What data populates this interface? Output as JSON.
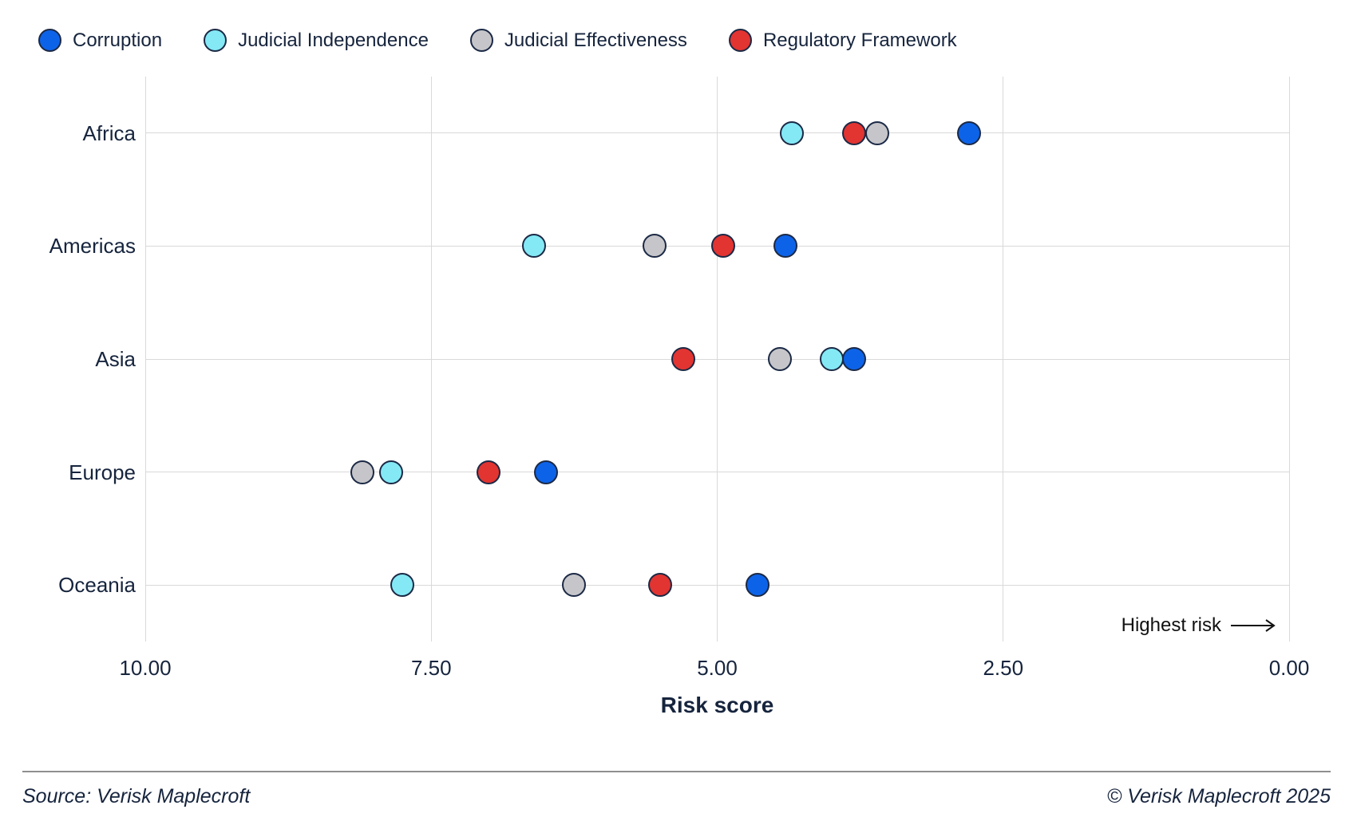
{
  "legend": {
    "items": [
      {
        "label": "Corruption",
        "color": "#0d63e8"
      },
      {
        "label": "Judicial Independence",
        "color": "#84e9f5"
      },
      {
        "label": "Judicial Effectiveness",
        "color": "#c6c6ca"
      },
      {
        "label": "Regulatory Framework",
        "color": "#e23431"
      }
    ]
  },
  "chart_data": {
    "type": "scatter",
    "variant": "horizontal-dot-plot",
    "categories": [
      "Africa",
      "Americas",
      "Asia",
      "Europe",
      "Oceania"
    ],
    "series": [
      {
        "name": "Corruption",
        "color": "#0d63e8",
        "values": [
          2.8,
          4.4,
          3.8,
          6.5,
          4.65
        ]
      },
      {
        "name": "Judicial Independence",
        "color": "#84e9f5",
        "values": [
          4.35,
          6.6,
          4.0,
          7.85,
          7.75
        ]
      },
      {
        "name": "Judicial Effectiveness",
        "color": "#c6c6ca",
        "values": [
          3.6,
          5.55,
          4.45,
          8.1,
          6.25
        ]
      },
      {
        "name": "Regulatory Framework",
        "color": "#e23431",
        "values": [
          3.8,
          4.95,
          5.3,
          7.0,
          5.5
        ]
      }
    ],
    "draw_order": [
      3,
      2,
      1,
      0
    ],
    "xlabel": "Risk score",
    "x_range": [
      10,
      0
    ],
    "x_ticks": [
      10,
      7.5,
      5,
      2.5,
      0
    ],
    "x_tick_labels": [
      "10.00",
      "7.50",
      "5.00",
      "2.50",
      "0.00"
    ],
    "grid": true,
    "legend_position": "top-left",
    "annotation": "Highest risk",
    "marker_stroke_color": "#1b2945",
    "gridline_color": "#d9d9d9"
  },
  "footer": {
    "source": "Source: Verisk Maplecroft",
    "copyright": "© Verisk Maplecroft 2025"
  }
}
